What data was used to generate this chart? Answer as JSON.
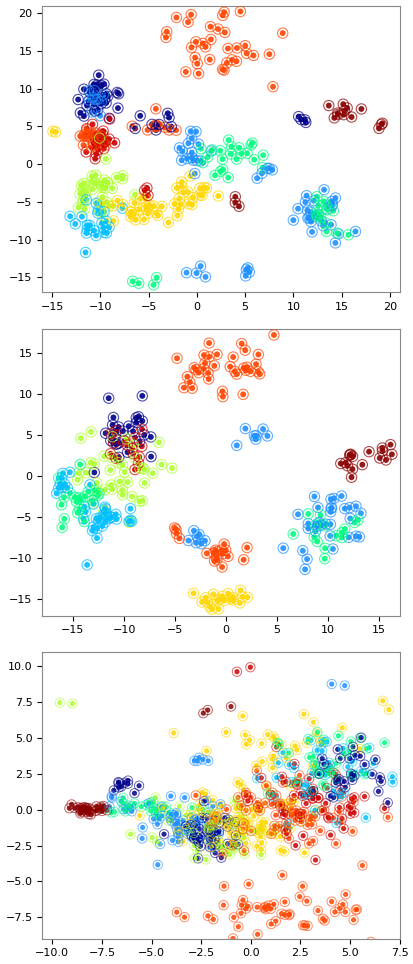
{
  "plots": [
    {
      "xlim": [
        -16,
        21
      ],
      "ylim": [
        -17,
        21
      ],
      "xticks": [
        -15,
        -10,
        -5,
        0,
        5,
        10,
        15,
        20
      ],
      "yticks": [
        -15,
        -10,
        -5,
        0,
        5,
        10,
        15,
        20
      ]
    },
    {
      "xlim": [
        -18,
        17
      ],
      "ylim": [
        -17,
        18
      ],
      "xticks": [
        -15,
        -10,
        -5,
        0,
        5,
        10,
        15
      ],
      "yticks": [
        -15,
        -10,
        -5,
        0,
        5,
        10,
        15
      ]
    },
    {
      "xlim": [
        -10.5,
        7.5
      ],
      "ylim": [
        -9,
        11
      ],
      "xticks": [
        -10,
        -7.5,
        -5,
        -2.5,
        0,
        2.5,
        5,
        7.5
      ],
      "yticks": [
        -7.5,
        -5,
        -2.5,
        0,
        2.5,
        5,
        7.5,
        10
      ]
    }
  ],
  "colors": [
    "#8B0000",
    "#CC0000",
    "#FF4500",
    "#FF8C00",
    "#FFD700",
    "#ADFF2F",
    "#00FF80",
    "#00BFFF",
    "#1E90FF",
    "#00008B"
  ],
  "cluster_params_1": [
    [
      -10.0,
      9.0,
      1.2,
      1.5,
      30,
      9
    ],
    [
      -10.5,
      8.5,
      0.6,
      0.8,
      10,
      8
    ],
    [
      -10.0,
      3.0,
      1.0,
      1.2,
      22,
      1
    ],
    [
      -11.0,
      3.5,
      0.7,
      0.8,
      14,
      2
    ],
    [
      -10.5,
      -3.5,
      1.5,
      1.8,
      35,
      5
    ],
    [
      -10.5,
      -7.5,
      1.3,
      1.3,
      22,
      7
    ],
    [
      -5.5,
      -6.5,
      2.2,
      1.5,
      28,
      4
    ],
    [
      -0.5,
      -3.5,
      1.3,
      1.3,
      16,
      4
    ],
    [
      -0.5,
      1.5,
      1.3,
      1.3,
      16,
      8
    ],
    [
      3.5,
      0.5,
      1.8,
      1.3,
      22,
      6
    ],
    [
      3.0,
      16.0,
      3.0,
      2.5,
      35,
      2
    ],
    [
      13.0,
      -6.0,
      1.8,
      1.8,
      25,
      8
    ],
    [
      13.0,
      -6.5,
      1.3,
      1.3,
      14,
      6
    ],
    [
      15.0,
      7.0,
      0.9,
      0.9,
      10,
      0
    ],
    [
      19.0,
      5.0,
      0.3,
      0.3,
      3,
      0
    ],
    [
      -15.0,
      4.5,
      0.2,
      0.2,
      2,
      4
    ],
    [
      0.0,
      -14.5,
      0.6,
      0.4,
      4,
      8
    ],
    [
      5.0,
      -14.5,
      0.6,
      0.4,
      4,
      8
    ],
    [
      -6.5,
      -15.5,
      0.3,
      0.3,
      2,
      6
    ],
    [
      -4.5,
      -15.5,
      0.3,
      0.3,
      2,
      6
    ],
    [
      -5.0,
      -3.5,
      0.4,
      0.4,
      3,
      1
    ],
    [
      4.5,
      -5.0,
      0.4,
      0.4,
      3,
      0
    ],
    [
      -4.0,
      5.0,
      1.0,
      0.9,
      10,
      2
    ],
    [
      -4.0,
      5.5,
      0.9,
      0.7,
      8,
      9
    ],
    [
      11.0,
      6.0,
      0.4,
      0.4,
      4,
      9
    ],
    [
      7.0,
      -1.0,
      0.7,
      0.7,
      5,
      8
    ]
  ],
  "cluster_params_2": [
    [
      -10.0,
      5.5,
      1.2,
      1.8,
      25,
      9
    ],
    [
      -10.0,
      4.0,
      1.0,
      1.5,
      15,
      1
    ],
    [
      -10.5,
      0.0,
      2.0,
      3.0,
      40,
      5
    ],
    [
      -12.0,
      -5.0,
      1.8,
      1.8,
      30,
      7
    ],
    [
      -14.0,
      -3.0,
      1.5,
      1.5,
      20,
      6
    ],
    [
      -16.0,
      -0.5,
      0.7,
      0.7,
      8,
      7
    ],
    [
      0.0,
      13.5,
      2.5,
      2.0,
      35,
      2
    ],
    [
      0.0,
      -9.5,
      1.0,
      0.7,
      15,
      2
    ],
    [
      0.0,
      -15.0,
      1.8,
      0.7,
      20,
      4
    ],
    [
      10.0,
      -6.0,
      1.8,
      2.2,
      32,
      8
    ],
    [
      10.0,
      -7.0,
      1.3,
      1.8,
      15,
      6
    ],
    [
      12.0,
      2.0,
      0.7,
      1.0,
      10,
      0
    ],
    [
      15.0,
      3.0,
      0.7,
      0.7,
      7,
      0
    ],
    [
      3.0,
      5.0,
      0.7,
      0.7,
      7,
      8
    ],
    [
      -5.0,
      -7.0,
      0.4,
      0.4,
      4,
      2
    ],
    [
      -3.0,
      -8.0,
      0.7,
      0.7,
      7,
      8
    ]
  ],
  "cluster_params_3": [
    [
      -8.2,
      0.0,
      0.45,
      0.2,
      30,
      0
    ],
    [
      -6.5,
      1.5,
      0.35,
      0.35,
      10,
      9
    ],
    [
      -6.5,
      0.2,
      0.35,
      0.35,
      7,
      8
    ],
    [
      -5.0,
      0.0,
      1.2,
      0.4,
      22,
      6
    ],
    [
      -4.0,
      -0.5,
      0.7,
      0.7,
      12,
      8
    ],
    [
      -3.0,
      -1.0,
      1.3,
      1.0,
      45,
      8
    ],
    [
      -2.0,
      -1.5,
      1.0,
      0.8,
      38,
      9
    ],
    [
      -1.5,
      -1.5,
      1.3,
      1.0,
      42,
      5
    ],
    [
      0.0,
      -1.0,
      1.8,
      1.3,
      75,
      4
    ],
    [
      1.5,
      -0.5,
      1.8,
      1.3,
      65,
      2
    ],
    [
      3.0,
      0.5,
      1.6,
      1.3,
      55,
      1
    ],
    [
      3.5,
      2.5,
      1.6,
      1.3,
      42,
      7
    ],
    [
      2.0,
      4.5,
      1.8,
      0.9,
      28,
      4
    ],
    [
      4.0,
      3.5,
      1.3,
      1.3,
      32,
      6
    ],
    [
      5.0,
      2.5,
      1.1,
      1.1,
      28,
      9
    ],
    [
      1.0,
      -7.0,
      1.8,
      0.7,
      42,
      2
    ],
    [
      5.0,
      -7.0,
      0.5,
      0.5,
      7,
      2
    ],
    [
      -2.5,
      3.5,
      0.35,
      0.2,
      5,
      8
    ],
    [
      -0.5,
      10.0,
      0.25,
      0.25,
      2,
      1
    ],
    [
      -9.5,
      7.5,
      0.25,
      0.25,
      2,
      5
    ],
    [
      7.0,
      7.0,
      0.25,
      0.25,
      2,
      4
    ],
    [
      4.5,
      8.5,
      0.25,
      0.25,
      2,
      8
    ],
    [
      -2.0,
      7.0,
      0.4,
      0.25,
      3,
      0
    ]
  ],
  "fig_width": 4.14,
  "fig_height": 9.64,
  "dpi": 100
}
